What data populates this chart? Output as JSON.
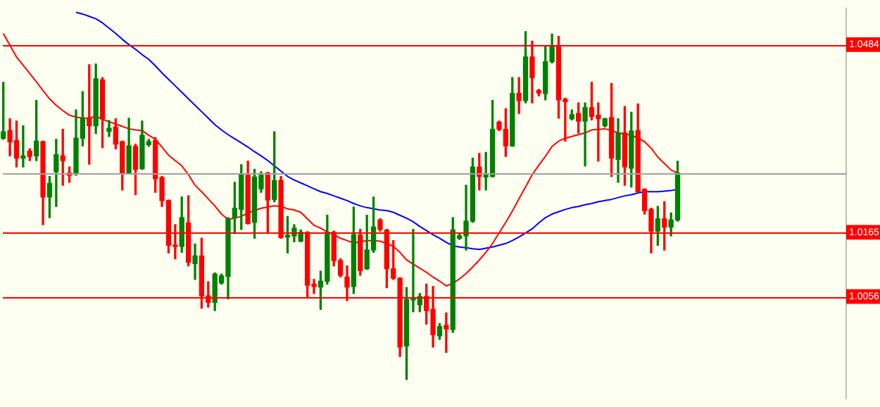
{
  "chart_data": {
    "type": "candlestick",
    "categories": [
      null,
      null,
      null,
      null,
      null,
      null,
      null,
      null,
      null,
      null,
      null,
      null,
      null,
      null,
      null,
      null,
      null,
      null,
      null,
      null,
      null,
      null,
      null,
      null,
      null,
      null,
      null,
      null,
      null,
      null,
      null,
      null,
      null,
      null,
      null,
      null,
      null,
      null,
      null,
      null,
      null,
      null,
      null,
      null,
      null,
      null,
      null,
      null,
      null,
      null,
      null,
      null,
      null,
      null,
      null,
      null,
      null,
      null,
      null,
      null,
      null,
      null,
      null,
      null,
      null,
      null,
      null,
      null,
      null,
      null,
      null,
      null,
      null,
      null,
      null,
      null,
      null,
      null,
      null,
      null,
      null,
      null,
      null,
      null,
      null,
      null,
      null,
      null,
      null,
      null,
      null,
      null,
      null,
      null,
      null,
      null,
      null,
      null,
      null,
      null,
      null,
      null,
      null,
      null,
      null,
      null,
      null,
      null,
      null,
      null,
      null,
      null,
      null,
      null,
      null,
      null,
      null,
      null,
      null,
      null,
      null,
      null,
      null,
      null,
      null,
      null,
      null,
      null
    ],
    "ohlc": [
      [
        1.0325,
        1.042,
        1.0323,
        1.0336
      ],
      [
        1.0338,
        1.0358,
        1.0295,
        1.0319
      ],
      [
        1.0321,
        1.0354,
        1.0276,
        1.0291
      ],
      [
        1.0291,
        1.0346,
        1.0276,
        1.0295
      ],
      [
        1.0303,
        1.0307,
        1.0287,
        1.0294
      ],
      [
        1.0295,
        1.0389,
        1.0287,
        1.032
      ],
      [
        1.0319,
        1.032,
        1.0178,
        1.0225
      ],
      [
        1.0225,
        1.026,
        1.019,
        1.0248
      ],
      [
        1.0268,
        1.0323,
        1.0209,
        1.0297
      ],
      [
        1.0295,
        1.034,
        1.0245,
        1.0287
      ],
      [
        1.0266,
        1.0276,
        1.025,
        1.0262
      ],
      [
        1.0264,
        1.0373,
        1.0262,
        1.0325
      ],
      [
        1.0325,
        1.0404,
        1.0312,
        1.0359
      ],
      [
        1.0358,
        1.045,
        1.0281,
        1.0346
      ],
      [
        1.0346,
        1.0451,
        1.0333,
        1.0426
      ],
      [
        1.0424,
        1.0428,
        1.0309,
        1.0358
      ],
      [
        1.0337,
        1.0355,
        1.0328,
        1.0342
      ],
      [
        1.0344,
        1.0358,
        1.0307,
        1.0315
      ],
      [
        1.0319,
        1.032,
        1.0237,
        1.0266
      ],
      [
        1.0266,
        1.0359,
        1.0264,
        1.0312
      ],
      [
        1.0311,
        1.0315,
        1.0229,
        1.0272
      ],
      [
        1.0273,
        1.0354,
        1.0272,
        1.033
      ],
      [
        1.0314,
        1.0323,
        1.0311,
        1.0319
      ],
      [
        1.0321,
        1.0326,
        1.0233,
        1.0256
      ],
      [
        1.0258,
        1.026,
        1.0209,
        1.0219
      ],
      [
        1.0219,
        1.022,
        1.013,
        1.0143
      ],
      [
        1.0143,
        1.0178,
        1.012,
        1.0141
      ],
      [
        1.0141,
        1.0225,
        1.0131,
        1.019
      ],
      [
        1.0181,
        1.0227,
        1.0108,
        1.0114
      ],
      [
        1.0112,
        1.0145,
        1.0085,
        1.0125
      ],
      [
        1.0125,
        1.0155,
        1.0036,
        1.0057
      ],
      [
        1.0057,
        1.0081,
        1.0038,
        1.0046
      ],
      [
        1.0046,
        1.0096,
        1.0032,
        1.0094
      ],
      [
        1.0079,
        1.0094,
        1.0077,
        1.0091
      ],
      [
        1.009,
        1.019,
        1.0052,
        1.0188
      ],
      [
        1.019,
        1.025,
        1.0163,
        1.0206
      ],
      [
        1.0204,
        1.028,
        1.017,
        1.0264
      ],
      [
        1.0262,
        1.0286,
        1.0179,
        1.018
      ],
      [
        1.0182,
        1.0272,
        1.0155,
        1.0259
      ],
      [
        1.0239,
        1.0268,
        1.0233,
        1.0262
      ],
      [
        1.0266,
        1.0267,
        1.0164,
        1.022
      ],
      [
        1.0221,
        1.0336,
        1.0217,
        1.0253
      ],
      [
        1.0253,
        1.026,
        1.0155,
        1.0156
      ],
      [
        1.0157,
        1.0192,
        1.013,
        1.016
      ],
      [
        1.0159,
        1.0178,
        1.0149,
        1.0172
      ],
      [
        1.015,
        1.0169,
        1.0149,
        1.0165
      ],
      [
        1.0165,
        1.0166,
        1.0055,
        1.0075
      ],
      [
        1.0077,
        1.0085,
        1.0061,
        1.0073
      ],
      [
        1.0072,
        1.0099,
        1.0034,
        1.0082
      ],
      [
        1.0082,
        1.0194,
        1.0077,
        1.0165
      ],
      [
        1.0165,
        1.0167,
        1.0108,
        1.0117
      ],
      [
        1.0117,
        1.012,
        1.0089,
        1.0092
      ],
      [
        1.0089,
        1.0108,
        1.0049,
        1.0072
      ],
      [
        1.0073,
        1.0208,
        1.0061,
        1.0161
      ],
      [
        1.016,
        1.017,
        1.0092,
        1.01
      ],
      [
        1.0103,
        1.0194,
        1.0102,
        1.0135
      ],
      [
        1.0135,
        1.0225,
        1.0131,
        1.0174
      ],
      [
        1.0186,
        1.0188,
        1.0167,
        1.017
      ],
      [
        1.0169,
        1.017,
        1.0071,
        1.0103
      ],
      [
        1.0103,
        1.0151,
        1.0085,
        1.0087
      ],
      [
        1.0087,
        1.0088,
        0.9954,
        0.997
      ],
      [
        0.9972,
        1.0071,
        0.9915,
        1.0051
      ],
      [
        1.005,
        1.017,
        1.003,
        1.0053
      ],
      [
        1.0042,
        1.0061,
        1.003,
        1.0056
      ],
      [
        1.0056,
        1.0077,
        1.0009,
        1.0032
      ],
      [
        1.0034,
        1.0073,
        0.997,
        0.9991
      ],
      [
        0.9989,
        1.001,
        0.9983,
        1.0005
      ],
      [
        1.0007,
        1.0028,
        0.9961,
        1.0001
      ],
      [
        1.0,
        1.019,
        0.9995,
        1.0169
      ],
      [
        1.0155,
        1.0163,
        1.0153,
        1.0159
      ],
      [
        1.0159,
        1.0245,
        1.0135,
        1.0184
      ],
      [
        1.0184,
        1.0291,
        1.0182,
        1.0276
      ],
      [
        1.0276,
        1.0299,
        1.0237,
        1.026
      ],
      [
        1.0259,
        1.0301,
        1.0237,
        1.0262
      ],
      [
        1.026,
        1.0389,
        1.0259,
        1.034
      ],
      [
        1.0352,
        1.0354,
        1.0338,
        1.034
      ],
      [
        1.034,
        1.0375,
        1.0294,
        1.0312
      ],
      [
        1.0312,
        1.0428,
        1.0311,
        1.0401
      ],
      [
        1.0401,
        1.0428,
        1.0367,
        1.0389
      ],
      [
        1.0389,
        1.0506,
        1.0385,
        1.0463
      ],
      [
        1.0463,
        1.049,
        1.0385,
        1.0428
      ],
      [
        1.0406,
        1.0408,
        1.0397,
        1.0402
      ],
      [
        1.0401,
        1.0482,
        1.039,
        1.0455
      ],
      [
        1.0455,
        1.0502,
        1.0453,
        1.0482
      ],
      [
        1.0482,
        1.0498,
        1.0359,
        1.039
      ],
      [
        1.0391,
        1.0393,
        1.032,
        1.0387
      ],
      [
        1.0358,
        1.0373,
        1.0356,
        1.0365
      ],
      [
        1.0367,
        1.0385,
        1.0334,
        1.0354
      ],
      [
        1.0354,
        1.0385,
        1.0278,
        1.0377
      ],
      [
        1.0377,
        1.042,
        1.0356,
        1.0362
      ],
      [
        1.0364,
        1.0385,
        1.0286,
        1.0358
      ],
      [
        1.0346,
        1.0359,
        1.0344,
        1.0358
      ],
      [
        1.036,
        1.0418,
        1.026,
        1.0291
      ],
      [
        1.0289,
        1.0358,
        1.025,
        1.0334
      ],
      [
        1.0334,
        1.0379,
        1.0245,
        1.0276
      ],
      [
        1.0274,
        1.0369,
        1.0242,
        1.0337
      ],
      [
        1.0338,
        1.0383,
        1.0233,
        1.0234
      ],
      [
        1.0238,
        1.0239,
        1.0196,
        1.0202
      ],
      [
        1.0204,
        1.0206,
        1.013,
        1.0167
      ],
      [
        1.0167,
        1.0209,
        1.0143,
        1.0188
      ],
      [
        1.0188,
        1.0217,
        1.0135,
        1.0174
      ],
      [
        1.0174,
        1.0198,
        1.0159,
        1.0186
      ],
      [
        1.0186,
        1.0286,
        1.0184,
        1.0266
      ],
      null,
      null,
      null,
      null,
      null,
      null,
      null,
      null,
      null,
      null,
      null,
      null,
      null,
      null,
      null,
      null,
      null,
      null,
      null,
      null,
      null,
      null,
      null,
      null,
      null
    ],
    "colors": [
      "#008000",
      "#ff0000",
      "#ff0000",
      "#008000",
      "#ff0000",
      "#008000",
      "#ff0000",
      "#008000",
      "#008000",
      "#ff0000",
      "#ff0000",
      "#008000",
      "#008000",
      "#ff0000",
      "#008000",
      "#ff0000",
      "#008000",
      "#ff0000",
      "#ff0000",
      "#008000",
      "#ff0000",
      "#008000",
      "#008000",
      "#ff0000",
      "#ff0000",
      "#ff0000",
      "#ff0000",
      "#008000",
      "#ff0000",
      "#008000",
      "#ff0000",
      "#ff0000",
      "#008000",
      "#008000",
      "#008000",
      "#008000",
      "#008000",
      "#ff0000",
      "#008000",
      "#008000",
      "#ff0000",
      "#008000",
      "#ff0000",
      "#008000",
      "#008000",
      "#008000",
      "#ff0000",
      "#ff0000",
      "#008000",
      "#008000",
      "#ff0000",
      "#ff0000",
      "#ff0000",
      "#008000",
      "#ff0000",
      "#008000",
      "#008000",
      "#ff0000",
      "#ff0000",
      "#ff0000",
      "#ff0000",
      "#008000",
      "#008000",
      "#008000",
      "#ff0000",
      "#ff0000",
      "#008000",
      "#ff0000",
      "#008000",
      "#008000",
      "#008000",
      "#008000",
      "#ff0000",
      "#008000",
      "#008000",
      "#ff0000",
      "#ff0000",
      "#008000",
      "#ff0000",
      "#008000",
      "#ff0000",
      "#ff0000",
      "#008000",
      "#008000",
      "#ff0000",
      "#ff0000",
      "#008000",
      "#ff0000",
      "#008000",
      "#ff0000",
      "#ff0000",
      "#008000",
      "#ff0000",
      "#008000",
      "#ff0000",
      "#008000",
      "#ff0000",
      "#ff0000",
      "#ff0000",
      "#008000",
      "#ff0000",
      "#008000",
      "#008000",
      null,
      null,
      null,
      null,
      null,
      null,
      null,
      null,
      null,
      null,
      null,
      null,
      null,
      null,
      null,
      null,
      null,
      null,
      null,
      null,
      null,
      null,
      null,
      null,
      null
    ],
    "series": [
      {
        "type": "line",
        "color": "#ff0000",
        "values": [
          1.0503,
          1.0483,
          1.0463,
          1.0449,
          1.0435,
          1.0421,
          1.0406,
          1.0392,
          1.0381,
          1.0372,
          1.0364,
          1.0361,
          1.0359,
          1.0359,
          1.0362,
          1.0357,
          1.0353,
          1.0349,
          1.0345,
          1.0341,
          1.0339,
          1.0338,
          1.033,
          1.0323,
          1.031,
          1.0296,
          1.0287,
          1.0278,
          1.0263,
          1.0245,
          1.0234,
          1.0222,
          1.021,
          1.0196,
          1.0187,
          1.0189,
          1.0192,
          1.0198,
          1.0202,
          1.0206,
          1.0208,
          1.021,
          1.0209,
          1.0205,
          1.0203,
          1.0199,
          1.0188,
          1.0177,
          1.0172,
          1.0166,
          1.0161,
          1.0155,
          1.0151,
          1.0147,
          1.0149,
          1.0151,
          1.0151,
          1.015,
          1.0146,
          1.0141,
          1.0131,
          1.0118,
          1.0111,
          1.0104,
          1.0097,
          1.0089,
          1.0082,
          1.0074,
          1.0078,
          1.0086,
          1.0095,
          1.0106,
          1.0118,
          1.0131,
          1.0146,
          1.0164,
          1.0182,
          1.0201,
          1.0222,
          1.0242,
          1.0263,
          1.0279,
          1.0294,
          1.0311,
          1.032,
          1.0325,
          1.0328,
          1.0331,
          1.0334,
          1.0339,
          1.034,
          1.0341,
          1.0338,
          1.0334,
          1.0332,
          1.033,
          1.0325,
          1.0319,
          1.0308,
          1.0293,
          1.0282,
          1.0271,
          1.0266,
          null,
          null,
          null,
          null,
          null,
          null,
          null,
          null,
          null,
          null,
          null,
          null,
          null,
          null,
          null,
          null,
          null,
          null,
          null,
          null,
          null,
          null,
          null,
          null,
          null
        ]
      },
      {
        "type": "line",
        "color": "#0000ff",
        "values": [
          null,
          null,
          null,
          null,
          null,
          null,
          null,
          null,
          null,
          null,
          null,
          1.0539,
          1.0536,
          1.0532,
          1.0528,
          1.0521,
          1.0512,
          1.0503,
          1.0493,
          1.0484,
          1.0476,
          1.0467,
          1.0459,
          1.0448,
          1.0436,
          1.0425,
          1.0414,
          1.0403,
          1.0392,
          1.0381,
          1.037,
          1.0359,
          1.0348,
          1.0339,
          1.0331,
          1.0324,
          1.0317,
          1.031,
          1.0302,
          1.0295,
          1.0287,
          1.0278,
          1.0269,
          1.026,
          1.0254,
          1.0249,
          1.0244,
          1.0239,
          1.0234,
          1.0231,
          1.0227,
          1.0223,
          1.0219,
          1.0214,
          1.021,
          1.0207,
          1.0205,
          1.0203,
          1.0202,
          1.0199,
          1.0194,
          1.0189,
          1.0183,
          1.0175,
          1.0168,
          1.0161,
          1.0155,
          1.0148,
          1.0142,
          1.014,
          1.0139,
          1.0137,
          1.0136,
          1.0138,
          1.014,
          1.0143,
          1.0146,
          1.0151,
          1.0157,
          1.0164,
          1.0171,
          1.0181,
          1.019,
          1.0196,
          1.02,
          1.0204,
          1.0207,
          1.0209,
          1.0212,
          1.0214,
          1.0217,
          1.0219,
          1.0221,
          1.0224,
          1.0227,
          1.0229,
          1.0232,
          1.0234,
          1.0234,
          1.0234,
          1.0235,
          1.0236,
          1.0238,
          null,
          null,
          null,
          null,
          null,
          null,
          null,
          null,
          null,
          null,
          null,
          null,
          null,
          null,
          null,
          null,
          null,
          null,
          null,
          null,
          null,
          null,
          null,
          null,
          null
        ]
      }
    ],
    "ylim": [
      0.9883,
      1.0545
    ],
    "yticks": [
      1.0056,
      1.0165,
      1.0484
    ],
    "tick_labels": "y",
    "ref_lines": [
      {
        "axis": "y",
        "value": 1.0484,
        "color": "#ff0000"
      },
      {
        "axis": "y",
        "value": 1.0266,
        "color": "#a0a0a0"
      },
      {
        "axis": "y",
        "value": 1.0165,
        "color": "#ff0000"
      },
      {
        "axis": "y",
        "value": 1.0056,
        "color": "#ff0000"
      }
    ]
  }
}
